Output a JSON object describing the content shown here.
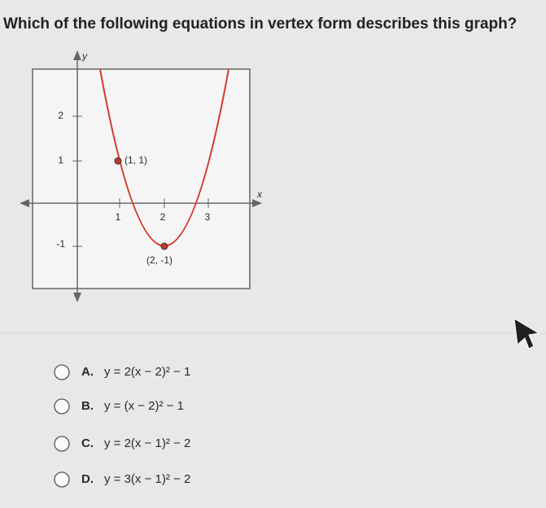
{
  "question": "Which of the following equations in vertex form describes this graph?",
  "graph": {
    "y_axis_label": "y",
    "x_axis_label": "x",
    "x_tick_labels": [
      "1",
      "2",
      "3"
    ],
    "y_tick_labels": [
      "2",
      "1",
      "-1"
    ],
    "point_labels": [
      "(1, 1)",
      "(2, -1)"
    ]
  },
  "options": [
    {
      "letter": "A.",
      "equation": "y = 2(x − 2)² − 1"
    },
    {
      "letter": "B.",
      "equation": "y = (x − 2)² − 1"
    },
    {
      "letter": "C.",
      "equation": "y = 2(x − 1)² − 2"
    },
    {
      "letter": "D.",
      "equation": "y = 3(x − 1)² − 2"
    }
  ]
}
